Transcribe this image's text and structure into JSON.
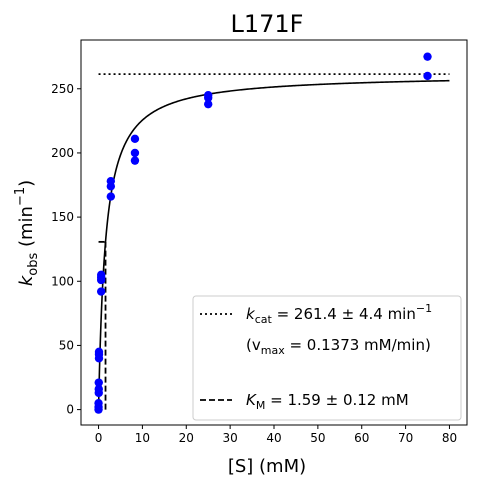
{
  "chart_data": {
    "type": "scatter",
    "title": "L171F",
    "xlabel": "[S] (mM)",
    "ylabel": "k_obs (min^-1)",
    "xlim": [
      -4,
      84
    ],
    "ylim": [
      -12,
      288
    ],
    "xticks": [
      0,
      10,
      20,
      30,
      40,
      50,
      60,
      70,
      80
    ],
    "yticks": [
      0,
      50,
      100,
      150,
      200,
      250
    ],
    "grid": false,
    "legend_position": "lower-right",
    "points": [
      {
        "x": 0,
        "y": 0
      },
      {
        "x": 0,
        "y": 2
      },
      {
        "x": 0,
        "y": 5
      },
      {
        "x": 0.05,
        "y": 13
      },
      {
        "x": 0.05,
        "y": 16
      },
      {
        "x": 0.05,
        "y": 21
      },
      {
        "x": 0.1,
        "y": 40
      },
      {
        "x": 0.1,
        "y": 43
      },
      {
        "x": 0.1,
        "y": 45
      },
      {
        "x": 0.6,
        "y": 92
      },
      {
        "x": 0.6,
        "y": 101
      },
      {
        "x": 0.6,
        "y": 103
      },
      {
        "x": 0.6,
        "y": 105
      },
      {
        "x": 2.8,
        "y": 166
      },
      {
        "x": 2.8,
        "y": 174
      },
      {
        "x": 2.8,
        "y": 178
      },
      {
        "x": 8.3,
        "y": 194
      },
      {
        "x": 8.3,
        "y": 200
      },
      {
        "x": 8.3,
        "y": 211
      },
      {
        "x": 25,
        "y": 238
      },
      {
        "x": 25,
        "y": 243
      },
      {
        "x": 25,
        "y": 245
      },
      {
        "x": 75,
        "y": 260
      },
      {
        "x": 75,
        "y": 275
      }
    ],
    "fit": {
      "kcat": 261.4,
      "km": 1.59,
      "x_range": [
        0,
        80
      ]
    },
    "reference_lines": {
      "kcat_y": 261.4,
      "km_x": 1.59,
      "km_y_top": 130.7
    },
    "legend": {
      "kcat_label": "k",
      "kcat_sub": "cat",
      "kcat_value": " = 261.4 ± 4.4 min",
      "kcat_sup": "−1",
      "vmax_open": "(v",
      "vmax_sub": "max",
      "vmax_value": " = 0.1373 mM/min)",
      "km_label": "K",
      "km_sub": "M",
      "km_value": " = 1.59 ± 0.12 mM"
    },
    "axis_text": {
      "xlabel": "[S] (mM)",
      "ylabel_main": "k",
      "ylabel_sub": "obs",
      "ylabel_rest": " (min",
      "ylabel_sup": "−1",
      "ylabel_close": ")"
    },
    "colors": {
      "points": "#0000ff",
      "lines": "#000000"
    }
  }
}
